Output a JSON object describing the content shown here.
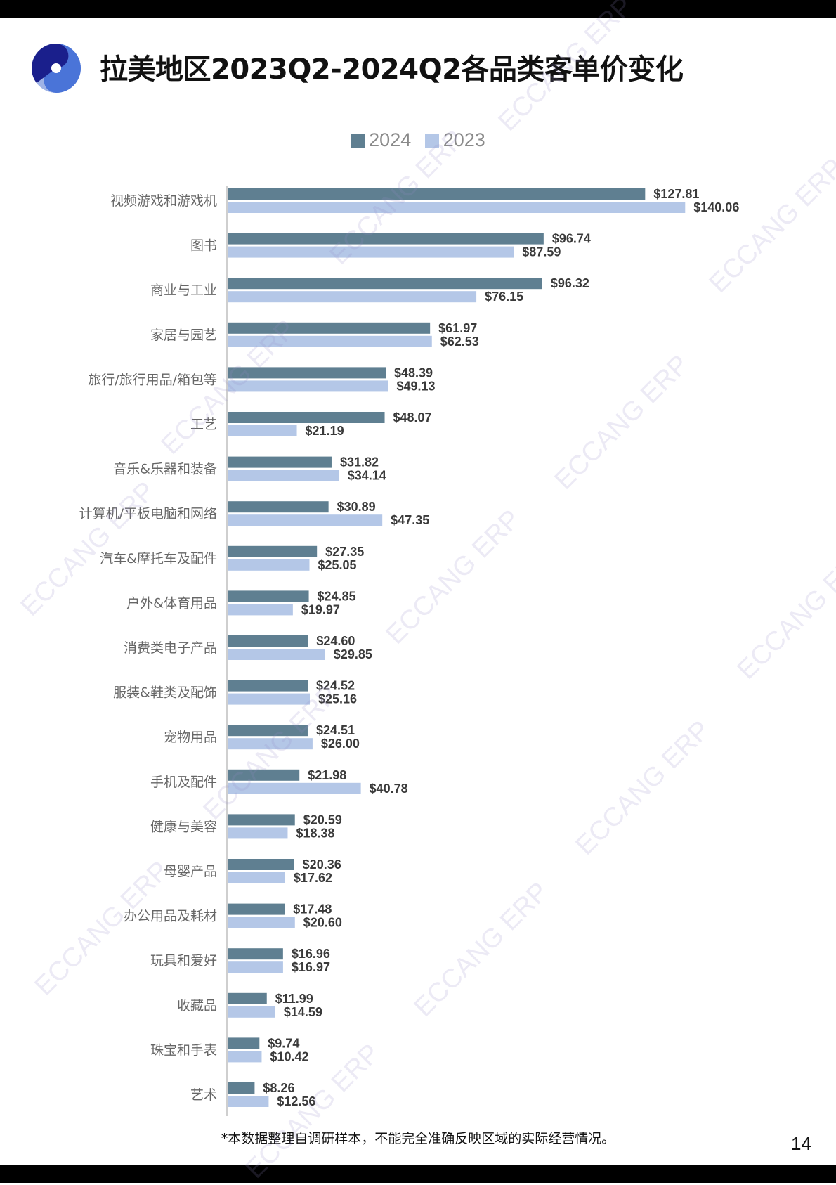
{
  "header": {
    "title": "拉美地区2023Q2-2024Q2各品类客单价变化"
  },
  "colors": {
    "series_2024": "#5f7f91",
    "series_2023": "#b4c7e7",
    "logo_dark": "#1a1f8c",
    "logo_light": "#9fb3e6"
  },
  "watermark": {
    "text": "ECCANG ERP"
  },
  "chart_data": {
    "type": "bar",
    "orientation": "horizontal",
    "legend_position": "top",
    "grid": false,
    "xlim": [
      0,
      145
    ],
    "categories": [
      "视频游戏和游戏机",
      "图书",
      "商业与工业",
      "家居与园艺",
      "旅行/旅行用品/箱包等",
      "工艺",
      "音乐&乐器和装备",
      "计算机/平板电脑和网络",
      "汽车&摩托车及配件",
      "户外&体育用品",
      "消费类电子产品",
      "服装&鞋类及配饰",
      "宠物用品",
      "手机及配件",
      "健康与美容",
      "母婴产品",
      "办公用品及耗材",
      "玩具和爱好",
      "收藏品",
      "珠宝和手表",
      "艺术"
    ],
    "series": [
      {
        "name": "2024",
        "values": [
          127.81,
          96.74,
          96.32,
          61.97,
          48.39,
          48.07,
          31.82,
          30.89,
          27.35,
          24.85,
          24.6,
          24.52,
          24.51,
          21.98,
          20.59,
          20.36,
          17.48,
          16.96,
          11.99,
          9.74,
          8.26
        ],
        "labels": [
          "$127.81",
          "$96.74",
          "$96.32",
          "$61.97",
          "$48.39",
          "$48.07",
          "$31.82",
          "$30.89",
          "$27.35",
          "$24.85",
          "$24.60",
          "$24.52",
          "$24.51",
          "$21.98",
          "$20.59",
          "$20.36",
          "$17.48",
          "$16.96",
          "$11.99",
          "$9.74",
          "$8.26"
        ]
      },
      {
        "name": "2023",
        "values": [
          140.06,
          87.59,
          76.15,
          62.53,
          49.13,
          21.19,
          34.14,
          47.35,
          25.05,
          19.97,
          29.85,
          25.16,
          26.0,
          40.78,
          18.38,
          17.62,
          20.6,
          16.97,
          14.59,
          10.42,
          12.56
        ],
        "labels": [
          "$140.06",
          "$87.59",
          "$76.15",
          "$62.53",
          "$49.13",
          "$21.19",
          "$34.14",
          "$47.35",
          "$25.05",
          "$19.97",
          "$29.85",
          "$25.16",
          "$26.00",
          "$40.78",
          "$18.38",
          "$17.62",
          "$20.60",
          "$16.97",
          "$14.59",
          "$10.42",
          "$12.56"
        ]
      }
    ]
  },
  "footer": {
    "note": "*本数据整理自调研样本，不能完全准确反映区域的实际经营情况。",
    "page_number": "14"
  }
}
